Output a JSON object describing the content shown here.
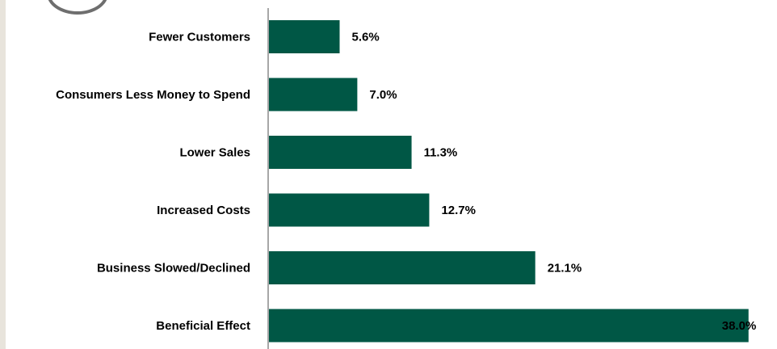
{
  "colors": {
    "bar": "#005745",
    "axis": "#8a8a8a",
    "left_strip": "#e8e4dc"
  },
  "chart_data": {
    "type": "bar",
    "orientation": "horizontal",
    "categories": [
      "Fewer Customers",
      "Consumers Less Money to Spend",
      "Lower Sales",
      "Increased Costs",
      "Business Slowed/Declined",
      "Beneficial Effect"
    ],
    "values": [
      5.6,
      7.0,
      11.3,
      12.7,
      21.1,
      38.0
    ],
    "value_labels": [
      "5.6%",
      "7.0%",
      "11.3%",
      "12.7%",
      "21.1%",
      "38.0%"
    ],
    "value_unit": "%",
    "xlim": [
      0,
      38.4
    ],
    "grid": false,
    "legend": "none"
  }
}
